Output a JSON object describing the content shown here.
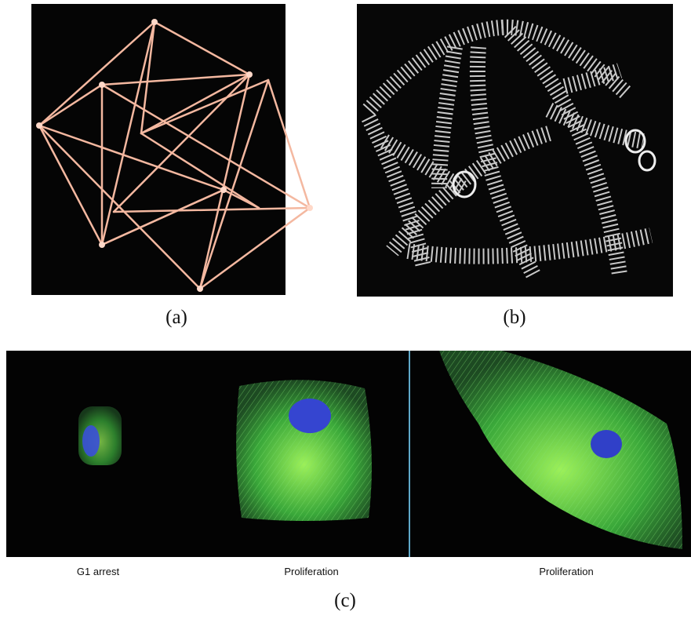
{
  "panels": [
    {
      "label": "(a)"
    },
    {
      "label": "(b)"
    },
    {
      "label": "(c)",
      "captions": [
        "G1 arrest",
        "Proliferation",
        "Proliferation"
      ]
    }
  ]
}
